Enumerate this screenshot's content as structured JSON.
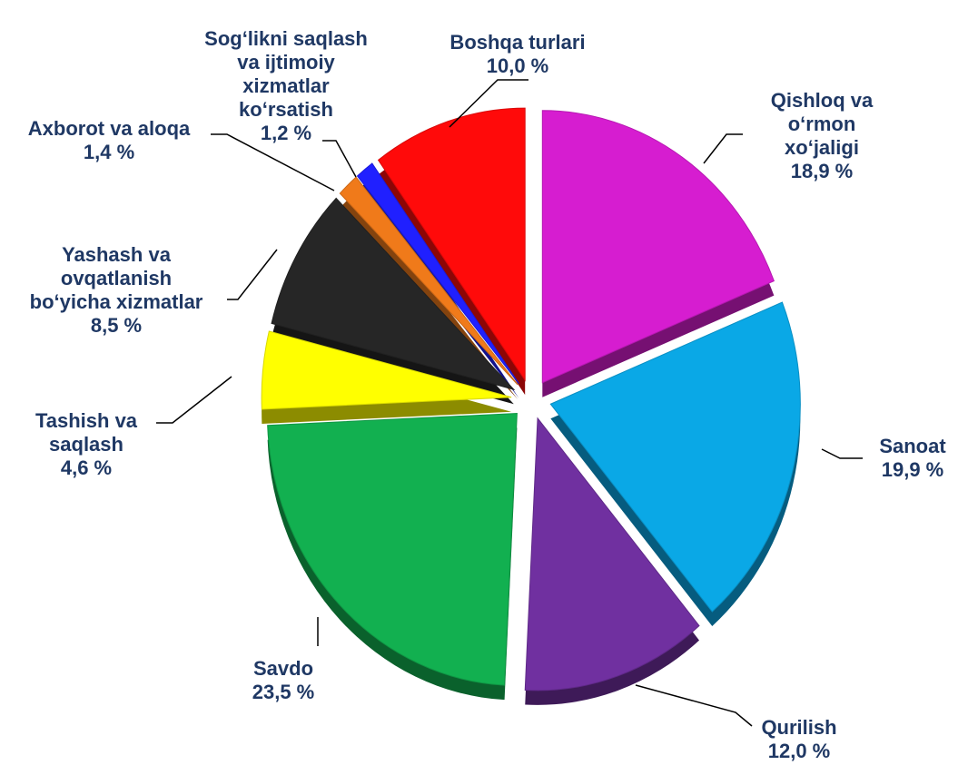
{
  "chart_data": {
    "type": "pie",
    "categories": [
      "Qishloq va\no‘rmon xo‘jaligi",
      "Sanoat",
      "Qurilish",
      "Savdo",
      "Tashish va\nsaqlash",
      "Yashash va\novqatlanish\nbo‘yicha xizmatlar",
      "Axborot va aloqa",
      "Sog‘likni saqlash\nva ijtimoiy\nxizmatlar\nko‘rsatish",
      "Boshqa turlari"
    ],
    "values": [
      18.9,
      19.9,
      12.0,
      23.5,
      4.6,
      8.5,
      1.4,
      1.2,
      10.0
    ],
    "value_labels": [
      "18,9 %",
      "19,9 %",
      "12,0 %",
      "23,5 %",
      "4,6 %",
      "8,5 %",
      "1,4 %",
      "1,2 %",
      "10,0 %"
    ],
    "colors": [
      "#d61dd0",
      "#0aa8e6",
      "#7030a0",
      "#12b050",
      "#ffff00",
      "#262626",
      "#f07a1a",
      "#2020ff",
      "#ff0a0a"
    ]
  }
}
